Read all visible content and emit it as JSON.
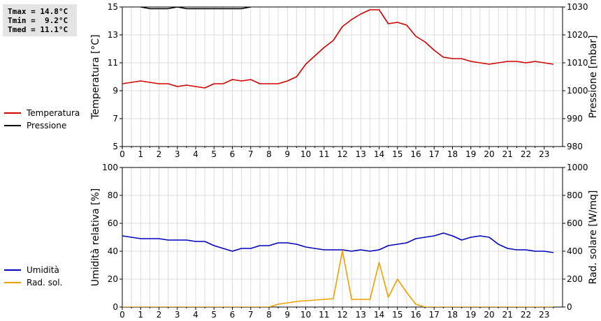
{
  "stats": {
    "tmax": "Tmax = 14.8°C",
    "tmin": "Tmin =  9.2°C",
    "tmed": "Tmed = 11.1°C"
  },
  "chart_data": [
    {
      "type": "line",
      "ylabel": "Temperatura [°C]",
      "y2label": "Pressione [mbar]",
      "ylim": [
        5,
        15
      ],
      "y2lim": [
        980,
        1030
      ],
      "yticks": [
        "5",
        "7",
        "9",
        "11",
        "13",
        "15"
      ],
      "y2ticks": [
        "980",
        "990",
        "1000",
        "1010",
        "1020",
        "1030"
      ],
      "xticks": [
        "0",
        "1",
        "2",
        "3",
        "4",
        "5",
        "6",
        "7",
        "8",
        "9",
        "10",
        "11",
        "12",
        "13",
        "14",
        "15",
        "16",
        "17",
        "18",
        "19",
        "20",
        "21",
        "22",
        "23"
      ],
      "xlim": [
        0,
        24
      ],
      "grid": true,
      "legend_position": "left",
      "series": [
        {
          "name": "Temperatura",
          "axis": "left",
          "color": "#d40000",
          "x": [
            0,
            0.5,
            1,
            1.5,
            2,
            2.5,
            3,
            3.5,
            4,
            4.5,
            5,
            5.5,
            6,
            6.5,
            7,
            7.5,
            8,
            8.5,
            9,
            9.5,
            10,
            10.5,
            11,
            11.5,
            12,
            12.5,
            13,
            13.5,
            14,
            14.5,
            15,
            15.5,
            16,
            16.5,
            17,
            17.5,
            18,
            18.5,
            19,
            19.5,
            20,
            20.5,
            21,
            21.5,
            22,
            22.5,
            23,
            23.5
          ],
          "values": [
            9.5,
            9.6,
            9.7,
            9.6,
            9.5,
            9.5,
            9.3,
            9.4,
            9.3,
            9.2,
            9.5,
            9.5,
            9.8,
            9.7,
            9.8,
            9.5,
            9.5,
            9.5,
            9.7,
            10.0,
            10.9,
            11.5,
            12.1,
            12.6,
            13.6,
            14.1,
            14.5,
            14.8,
            14.8,
            13.8,
            13.9,
            13.7,
            12.9,
            12.5,
            11.9,
            11.4,
            11.3,
            11.3,
            11.1,
            11.0,
            10.9,
            11.0,
            11.1,
            11.1,
            11.0,
            11.1,
            11.0,
            10.9
          ]
        },
        {
          "name": "Pressione",
          "axis": "right",
          "color": "#000000",
          "x": [
            1.0,
            1.5,
            2.0,
            2.5,
            3.0,
            3.5,
            4.0,
            4.5,
            5.0,
            5.5,
            6.0,
            6.5,
            7.0
          ],
          "values": [
            1030.0,
            1029.4,
            1029.4,
            1029.4,
            1030.0,
            1029.4,
            1029.4,
            1029.4,
            1029.4,
            1029.4,
            1029.4,
            1029.4,
            1030.0
          ]
        }
      ]
    },
    {
      "type": "line",
      "ylabel": "Umidità relativa [%]",
      "y2label": "Rad. solare [W/mq]",
      "ylim": [
        0,
        100
      ],
      "y2lim": [
        0,
        1000
      ],
      "yticks": [
        "0",
        "20",
        "40",
        "60",
        "80",
        "100"
      ],
      "y2ticks": [
        "0",
        "200",
        "400",
        "600",
        "800",
        "1000"
      ],
      "xticks": [
        "0",
        "1",
        "2",
        "3",
        "4",
        "5",
        "6",
        "7",
        "8",
        "9",
        "10",
        "11",
        "12",
        "13",
        "14",
        "15",
        "16",
        "17",
        "18",
        "19",
        "20",
        "21",
        "22",
        "23"
      ],
      "xlim": [
        0,
        24
      ],
      "grid": true,
      "legend_position": "left",
      "series": [
        {
          "name": "Umidità",
          "axis": "left",
          "color": "#0000c0",
          "x": [
            0,
            0.5,
            1,
            1.5,
            2,
            2.5,
            3,
            3.5,
            4,
            4.5,
            5,
            5.5,
            6,
            6.5,
            7,
            7.5,
            8,
            8.5,
            9,
            9.5,
            10,
            10.5,
            11,
            11.5,
            12,
            12.5,
            13,
            13.5,
            14,
            14.5,
            15,
            15.5,
            16,
            16.5,
            17,
            17.5,
            18,
            18.5,
            19,
            19.5,
            20,
            20.5,
            21,
            21.5,
            22,
            22.5,
            23,
            23.5
          ],
          "values": [
            51,
            50,
            49,
            49,
            49,
            48,
            48,
            48,
            47,
            47,
            44,
            42,
            40,
            42,
            42,
            44,
            44,
            46,
            46,
            45,
            43,
            42,
            41,
            41,
            41,
            40,
            41,
            40,
            41,
            44,
            45,
            46,
            49,
            50,
            51,
            53,
            51,
            48,
            50,
            51,
            50,
            45,
            42,
            41,
            41,
            40,
            40,
            39
          ]
        },
        {
          "name": "Rad. sol.",
          "axis": "right",
          "color": "#f0a000",
          "x": [
            0,
            1,
            2,
            3,
            4,
            5,
            6,
            7,
            8,
            8.5,
            9,
            9.5,
            10,
            10.5,
            11,
            11.5,
            12,
            12.5,
            13,
            13.5,
            14,
            14.5,
            15,
            15.5,
            16,
            16.5,
            17,
            18,
            19,
            20,
            21,
            22,
            23,
            23.5
          ],
          "values": [
            0,
            0,
            0,
            0,
            0,
            0,
            0,
            0,
            0,
            20,
            30,
            40,
            45,
            50,
            55,
            60,
            405,
            55,
            55,
            55,
            320,
            70,
            200,
            105,
            20,
            0,
            0,
            0,
            0,
            0,
            0,
            0,
            0,
            0
          ]
        }
      ]
    }
  ]
}
